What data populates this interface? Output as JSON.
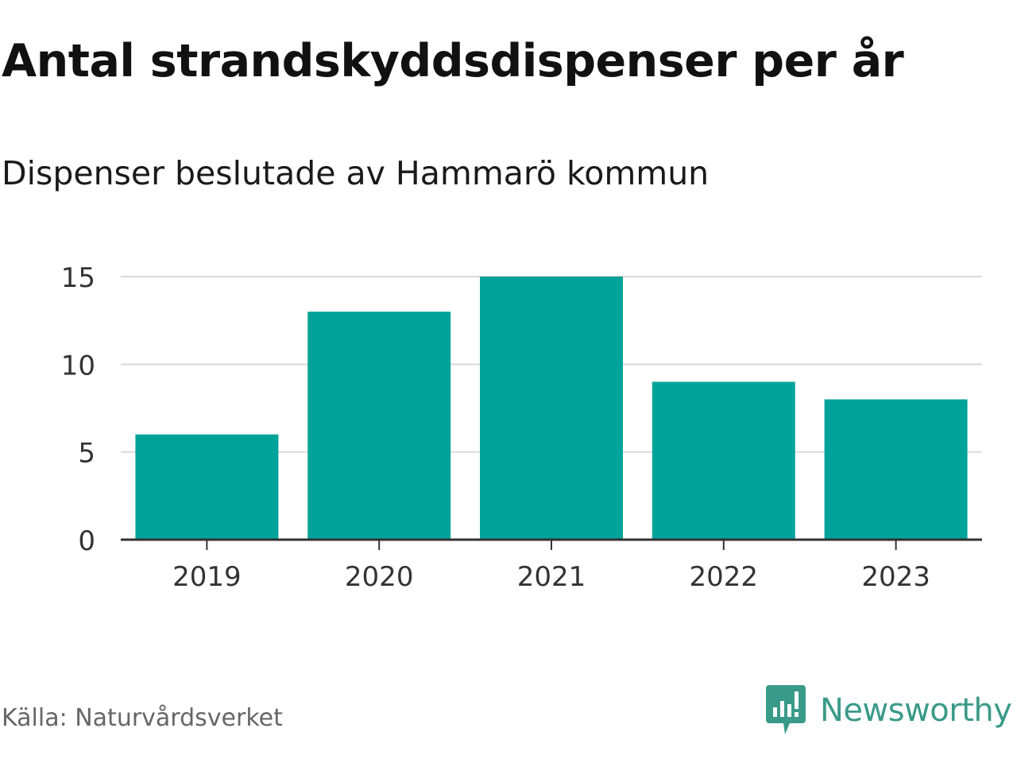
{
  "chart_data": {
    "type": "bar",
    "title": "Antal strandskyddsdispenser per år",
    "subtitle": "Dispenser beslutade av Hammarö kommun",
    "categories": [
      "2019",
      "2020",
      "2021",
      "2022",
      "2023"
    ],
    "values": [
      6,
      13,
      15,
      9,
      8
    ],
    "xlabel": "",
    "ylabel": "",
    "ylim": [
      0,
      15
    ],
    "yticks": [
      "0",
      "5",
      "10",
      "15"
    ],
    "grid": true,
    "bar_color": "#00a39a"
  },
  "footer": {
    "source": "Källa: Naturvårdsverket",
    "brand": "Newsworthy",
    "brand_icon": "newsworthy-logo-icon",
    "brand_color": "#3a9a8a"
  }
}
